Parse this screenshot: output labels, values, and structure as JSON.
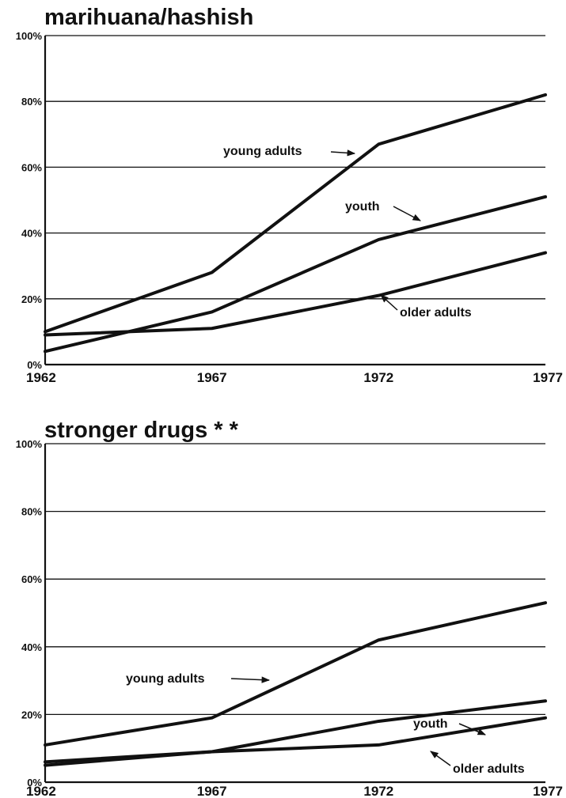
{
  "chart_data": [
    {
      "type": "line",
      "title": "marihuana/hashish",
      "x": [
        1962,
        1967,
        1972,
        1977
      ],
      "x_tick_labels": [
        "1962",
        "1967",
        "1972",
        "1977"
      ],
      "ylim": [
        0,
        100
      ],
      "y_ticks": [
        0,
        20,
        40,
        60,
        80,
        100
      ],
      "y_tick_labels": [
        "0%",
        "20%",
        "40%",
        "60%",
        "80%",
        "100%"
      ],
      "grid": true,
      "series": [
        {
          "name": "young adults",
          "values": [
            10,
            28,
            67,
            82
          ],
          "label": "young adults"
        },
        {
          "name": "youth",
          "values": [
            4,
            16,
            38,
            51
          ],
          "label": "youth"
        },
        {
          "name": "older adults",
          "values": [
            9,
            11,
            21,
            34
          ],
          "label": "older adults"
        }
      ]
    },
    {
      "type": "line",
      "title": "stronger drugs * *",
      "x": [
        1962,
        1967,
        1972,
        1977
      ],
      "x_tick_labels": [
        "1962",
        "1967",
        "1972",
        "1977"
      ],
      "ylim": [
        0,
        100
      ],
      "y_ticks": [
        0,
        20,
        40,
        60,
        80,
        100
      ],
      "y_tick_labels": [
        "0%",
        "20%",
        "40%",
        "60%",
        "80%",
        "100%"
      ],
      "grid": true,
      "series": [
        {
          "name": "young adults",
          "values": [
            11,
            19,
            42,
            53
          ],
          "label": "young adults"
        },
        {
          "name": "youth",
          "values": [
            6,
            9,
            18,
            24
          ],
          "label": "youth"
        },
        {
          "name": "older adults",
          "values": [
            5,
            9,
            11,
            19
          ],
          "label": "older adults"
        }
      ]
    }
  ]
}
